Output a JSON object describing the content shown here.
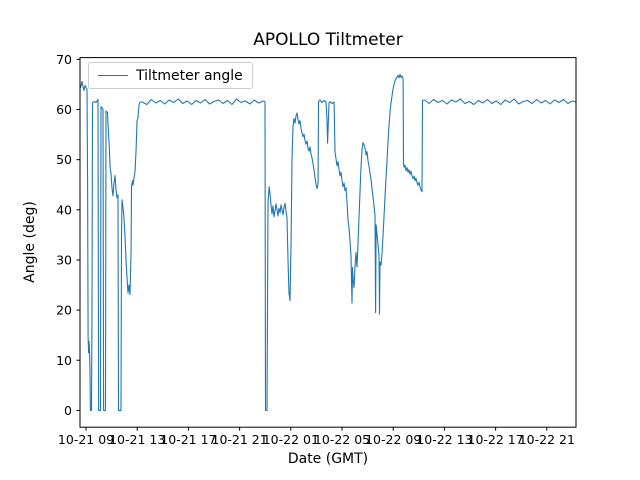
{
  "chart_data": {
    "type": "line",
    "title": "APOLLO Tiltmeter",
    "xlabel": "Date (GMT)",
    "ylabel": "Angle (deg)",
    "legend": [
      "Tiltmeter angle"
    ],
    "legend_position": "upper left",
    "grid": false,
    "line_color": "#1f77b4",
    "axis_color": "#000000",
    "x_unit": "hours since 10-21 00:00",
    "xlim": [
      8.53,
      47.28
    ],
    "ylim": [
      -3.35,
      70.35
    ],
    "y_ticks": [
      0,
      10,
      20,
      30,
      40,
      50,
      60,
      70
    ],
    "x_ticks": [
      {
        "t": 9,
        "label": "10-21 09"
      },
      {
        "t": 13,
        "label": "10-21 13"
      },
      {
        "t": 17,
        "label": "10-21 17"
      },
      {
        "t": 21,
        "label": "10-21 21"
      },
      {
        "t": 25,
        "label": "10-22 01"
      },
      {
        "t": 29,
        "label": "10-22 05"
      },
      {
        "t": 33,
        "label": "10-22 09"
      },
      {
        "t": 37,
        "label": "10-22 13"
      },
      {
        "t": 41,
        "label": "10-22 17"
      },
      {
        "t": 45,
        "label": "10-22 21"
      }
    ],
    "series": [
      {
        "name": "Tiltmeter angle",
        "points": [
          [
            8.53,
            64.2
          ],
          [
            8.61,
            64.7
          ],
          [
            8.69,
            65.6
          ],
          [
            8.77,
            64.5
          ],
          [
            8.84,
            63.8
          ],
          [
            8.92,
            64.8
          ],
          [
            9.0,
            64.4
          ],
          [
            9.08,
            64.0
          ],
          [
            9.12,
            45.0
          ],
          [
            9.16,
            14.5
          ],
          [
            9.2,
            11.5
          ],
          [
            9.23,
            13.8
          ],
          [
            9.27,
            12.0
          ],
          [
            9.31,
            8.0
          ],
          [
            9.34,
            0
          ],
          [
            9.43,
            0
          ],
          [
            9.47,
            20.0
          ],
          [
            9.51,
            61.3
          ],
          [
            9.63,
            61.6
          ],
          [
            9.78,
            61.4
          ],
          [
            9.94,
            62.0
          ],
          [
            9.98,
            0
          ],
          [
            10.13,
            0
          ],
          [
            10.17,
            60.6
          ],
          [
            10.25,
            60.3
          ],
          [
            10.33,
            60.1
          ],
          [
            10.37,
            0
          ],
          [
            10.52,
            0
          ],
          [
            10.56,
            59.7
          ],
          [
            10.68,
            59.4
          ],
          [
            10.76,
            55.0
          ],
          [
            10.8,
            53.2
          ],
          [
            10.88,
            48.5
          ],
          [
            10.95,
            47.2
          ],
          [
            11.03,
            44.3
          ],
          [
            11.11,
            42.8
          ],
          [
            11.19,
            45.4
          ],
          [
            11.27,
            46.8
          ],
          [
            11.34,
            44.1
          ],
          [
            11.42,
            42.4
          ],
          [
            11.5,
            43.0
          ],
          [
            11.54,
            0
          ],
          [
            11.73,
            0
          ],
          [
            11.77,
            34.5
          ],
          [
            11.81,
            42.0
          ],
          [
            11.89,
            40.6
          ],
          [
            11.97,
            38.4
          ],
          [
            12.05,
            34.3
          ],
          [
            12.13,
            29.7
          ],
          [
            12.2,
            26.5
          ],
          [
            12.28,
            23.4
          ],
          [
            12.36,
            25.0
          ],
          [
            12.44,
            23.1
          ],
          [
            12.52,
            32.0
          ],
          [
            12.55,
            44.6
          ],
          [
            12.63,
            45.8
          ],
          [
            12.67,
            44.9
          ],
          [
            12.75,
            46.3
          ],
          [
            12.83,
            47.6
          ],
          [
            12.91,
            52.0
          ],
          [
            12.98,
            57.7
          ],
          [
            13.06,
            58.4
          ],
          [
            13.14,
            60.9
          ],
          [
            13.22,
            61.5
          ],
          [
            13.4,
            61.5
          ],
          [
            13.75,
            61.0
          ],
          [
            14.1,
            62.0
          ],
          [
            14.45,
            61.3
          ],
          [
            14.8,
            61.8
          ],
          [
            15.15,
            61.1
          ],
          [
            15.5,
            61.9
          ],
          [
            15.85,
            61.4
          ],
          [
            16.2,
            62.1
          ],
          [
            16.55,
            61.2
          ],
          [
            16.9,
            61.7
          ],
          [
            17.25,
            61.0
          ],
          [
            17.6,
            61.8
          ],
          [
            17.95,
            61.3
          ],
          [
            18.3,
            62.0
          ],
          [
            18.65,
            61.1
          ],
          [
            19.0,
            61.6
          ],
          [
            19.35,
            61.9
          ],
          [
            19.7,
            61.2
          ],
          [
            20.05,
            61.8
          ],
          [
            20.4,
            61.0
          ],
          [
            20.75,
            62.1
          ],
          [
            21.1,
            61.4
          ],
          [
            21.45,
            61.7
          ],
          [
            21.8,
            61.1
          ],
          [
            22.15,
            61.9
          ],
          [
            22.5,
            61.3
          ],
          [
            22.85,
            61.7
          ],
          [
            22.98,
            61.6
          ],
          [
            23.02,
            0
          ],
          [
            23.14,
            0
          ],
          [
            23.22,
            41.5
          ],
          [
            23.3,
            44.6
          ],
          [
            23.38,
            43.1
          ],
          [
            23.45,
            40.9
          ],
          [
            23.53,
            39.2
          ],
          [
            23.61,
            40.8
          ],
          [
            23.69,
            38.6
          ],
          [
            23.77,
            39.9
          ],
          [
            23.84,
            41.2
          ],
          [
            23.92,
            40.0
          ],
          [
            24.0,
            38.8
          ],
          [
            24.08,
            40.3
          ],
          [
            24.16,
            39.4
          ],
          [
            24.23,
            41.0
          ],
          [
            24.31,
            40.1
          ],
          [
            24.39,
            39.0
          ],
          [
            24.47,
            40.5
          ],
          [
            24.55,
            41.3
          ],
          [
            24.63,
            39.6
          ],
          [
            24.7,
            38.4
          ],
          [
            24.78,
            30.0
          ],
          [
            24.86,
            23.4
          ],
          [
            24.94,
            21.9
          ],
          [
            25.02,
            34.0
          ],
          [
            25.09,
            50.0
          ],
          [
            25.17,
            56.6
          ],
          [
            25.25,
            58.2
          ],
          [
            25.33,
            57.3
          ],
          [
            25.41,
            58.8
          ],
          [
            25.48,
            59.3
          ],
          [
            25.56,
            58.0
          ],
          [
            25.64,
            57.1
          ],
          [
            25.72,
            57.8
          ],
          [
            25.8,
            56.1
          ],
          [
            25.88,
            55.3
          ],
          [
            25.95,
            54.6
          ],
          [
            26.03,
            55.1
          ],
          [
            26.11,
            53.8
          ],
          [
            26.19,
            53.1
          ],
          [
            26.27,
            53.7
          ],
          [
            26.34,
            52.3
          ],
          [
            26.42,
            51.7
          ],
          [
            26.5,
            52.5
          ],
          [
            26.58,
            51.1
          ],
          [
            26.66,
            50.3
          ],
          [
            26.73,
            49.2
          ],
          [
            26.81,
            48.0
          ],
          [
            26.89,
            46.4
          ],
          [
            26.97,
            45.1
          ],
          [
            27.05,
            44.2
          ],
          [
            27.13,
            45.3
          ],
          [
            27.16,
            61.6
          ],
          [
            27.28,
            61.9
          ],
          [
            27.44,
            61.4
          ],
          [
            27.59,
            61.8
          ],
          [
            27.75,
            61.5
          ],
          [
            27.83,
            58.0
          ],
          [
            27.87,
            53.3
          ],
          [
            27.98,
            61.3
          ],
          [
            28.06,
            61.6
          ],
          [
            28.22,
            61.2
          ],
          [
            28.38,
            61.5
          ],
          [
            28.45,
            51.5
          ],
          [
            28.53,
            50.2
          ],
          [
            28.61,
            48.8
          ],
          [
            28.69,
            49.6
          ],
          [
            28.77,
            47.9
          ],
          [
            28.84,
            46.8
          ],
          [
            28.92,
            47.5
          ],
          [
            29.0,
            45.9
          ],
          [
            29.08,
            44.6
          ],
          [
            29.16,
            45.3
          ],
          [
            29.23,
            43.8
          ],
          [
            29.31,
            44.4
          ],
          [
            29.39,
            41.6
          ],
          [
            29.47,
            38.0
          ],
          [
            29.55,
            36.2
          ],
          [
            29.63,
            33.5
          ],
          [
            29.7,
            30.8
          ],
          [
            29.74,
            26.0
          ],
          [
            29.78,
            21.4
          ],
          [
            29.82,
            28.5
          ],
          [
            29.86,
            26.2
          ],
          [
            29.94,
            24.5
          ],
          [
            30.02,
            29.0
          ],
          [
            30.09,
            31.5
          ],
          [
            30.17,
            28.6
          ],
          [
            30.25,
            33.0
          ],
          [
            30.33,
            38.5
          ],
          [
            30.41,
            44.0
          ],
          [
            30.48,
            48.5
          ],
          [
            30.56,
            51.8
          ],
          [
            30.64,
            53.4
          ],
          [
            30.72,
            53.0
          ],
          [
            30.8,
            52.2
          ],
          [
            30.88,
            50.9
          ],
          [
            30.95,
            51.6
          ],
          [
            31.03,
            49.8
          ],
          [
            31.11,
            48.7
          ],
          [
            31.19,
            47.3
          ],
          [
            31.27,
            45.9
          ],
          [
            31.34,
            44.2
          ],
          [
            31.42,
            42.6
          ],
          [
            31.5,
            40.9
          ],
          [
            31.58,
            38.8
          ],
          [
            31.62,
            19.5
          ],
          [
            31.66,
            37.0
          ],
          [
            31.73,
            35.2
          ],
          [
            31.81,
            33.0
          ],
          [
            31.89,
            31.0
          ],
          [
            31.93,
            19.2
          ],
          [
            31.97,
            29.6
          ],
          [
            32.05,
            29.0
          ],
          [
            32.13,
            31.5
          ],
          [
            32.2,
            34.8
          ],
          [
            32.28,
            38.6
          ],
          [
            32.36,
            42.5
          ],
          [
            32.44,
            46.2
          ],
          [
            32.52,
            50.0
          ],
          [
            32.59,
            53.6
          ],
          [
            32.67,
            56.8
          ],
          [
            32.75,
            59.4
          ],
          [
            32.83,
            61.3
          ],
          [
            32.91,
            62.8
          ],
          [
            32.98,
            64.0
          ],
          [
            33.06,
            65.0
          ],
          [
            33.14,
            65.7
          ],
          [
            33.22,
            66.1
          ],
          [
            33.3,
            66.5
          ],
          [
            33.38,
            66.8
          ],
          [
            33.45,
            66.3
          ],
          [
            33.53,
            67.0
          ],
          [
            33.61,
            66.4
          ],
          [
            33.69,
            66.7
          ],
          [
            33.77,
            66.1
          ],
          [
            33.8,
            49.2
          ],
          [
            33.84,
            48.5
          ],
          [
            33.92,
            48.9
          ],
          [
            34.0,
            47.8
          ],
          [
            34.08,
            48.4
          ],
          [
            34.16,
            47.5
          ],
          [
            34.23,
            48.0
          ],
          [
            34.31,
            47.1
          ],
          [
            34.39,
            47.7
          ],
          [
            34.47,
            46.8
          ],
          [
            34.55,
            46.2
          ],
          [
            34.63,
            46.7
          ],
          [
            34.7,
            45.8
          ],
          [
            34.78,
            46.3
          ],
          [
            34.86,
            45.4
          ],
          [
            34.94,
            44.9
          ],
          [
            35.02,
            45.5
          ],
          [
            35.09,
            44.5
          ],
          [
            35.17,
            44.0
          ],
          [
            35.25,
            43.6
          ],
          [
            35.29,
            61.8
          ],
          [
            35.45,
            61.9
          ],
          [
            35.8,
            61.2
          ],
          [
            36.15,
            62.0
          ],
          [
            36.5,
            61.4
          ],
          [
            36.85,
            61.8
          ],
          [
            37.2,
            61.1
          ],
          [
            37.55,
            61.9
          ],
          [
            37.9,
            61.5
          ],
          [
            38.25,
            62.1
          ],
          [
            38.6,
            61.2
          ],
          [
            38.95,
            61.6
          ],
          [
            39.3,
            61.0
          ],
          [
            39.65,
            61.8
          ],
          [
            40.0,
            61.3
          ],
          [
            40.35,
            62.0
          ],
          [
            40.7,
            61.2
          ],
          [
            41.05,
            61.7
          ],
          [
            41.4,
            61.0
          ],
          [
            41.75,
            61.9
          ],
          [
            42.1,
            61.4
          ],
          [
            42.45,
            62.1
          ],
          [
            42.8,
            61.1
          ],
          [
            43.15,
            61.6
          ],
          [
            43.5,
            61.8
          ],
          [
            43.85,
            61.2
          ],
          [
            44.2,
            62.0
          ],
          [
            44.55,
            61.3
          ],
          [
            44.9,
            61.8
          ],
          [
            45.25,
            61.1
          ],
          [
            45.6,
            61.9
          ],
          [
            45.95,
            61.4
          ],
          [
            46.3,
            62.0
          ],
          [
            46.65,
            61.2
          ],
          [
            47.0,
            61.7
          ],
          [
            47.28,
            61.5
          ]
        ]
      }
    ]
  }
}
